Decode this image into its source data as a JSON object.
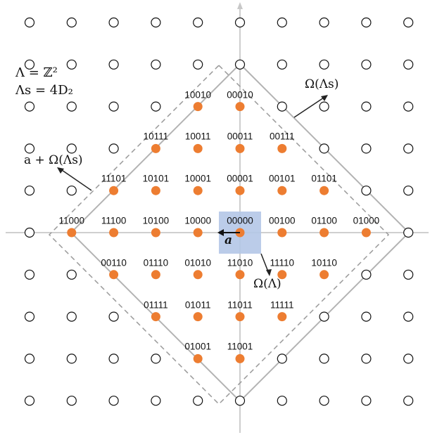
{
  "lattice_annotation": {
    "line1": "Λ = ℤ²",
    "line2": "Λs = 4D₂"
  },
  "region_labels": {
    "omega_lambda_s": "Ω(Λs)",
    "a_plus_omega": "a + Ω(Λs)",
    "omega_lambda": "Ω(Λ)",
    "vector_a": "a"
  },
  "codewords": [
    {
      "code": "10010",
      "i": -1,
      "j": 3
    },
    {
      "code": "00010",
      "i": 0,
      "j": 3
    },
    {
      "code": "10111",
      "i": -2,
      "j": 2
    },
    {
      "code": "10011",
      "i": -1,
      "j": 2
    },
    {
      "code": "00011",
      "i": 0,
      "j": 2
    },
    {
      "code": "00111",
      "i": 1,
      "j": 2
    },
    {
      "code": "11101",
      "i": -3,
      "j": 1
    },
    {
      "code": "10101",
      "i": -2,
      "j": 1
    },
    {
      "code": "10001",
      "i": -1,
      "j": 1
    },
    {
      "code": "00001",
      "i": 0,
      "j": 1
    },
    {
      "code": "00101",
      "i": 1,
      "j": 1
    },
    {
      "code": "01101",
      "i": 2,
      "j": 1
    },
    {
      "code": "11000",
      "i": -4,
      "j": 0
    },
    {
      "code": "11100",
      "i": -3,
      "j": 0
    },
    {
      "code": "10100",
      "i": -2,
      "j": 0
    },
    {
      "code": "10000",
      "i": -1,
      "j": 0
    },
    {
      "code": "00000",
      "i": 0,
      "j": 0
    },
    {
      "code": "00100",
      "i": 1,
      "j": 0
    },
    {
      "code": "01100",
      "i": 2,
      "j": 0
    },
    {
      "code": "01000",
      "i": 3,
      "j": 0
    },
    {
      "code": "00110",
      "i": -3,
      "j": -1
    },
    {
      "code": "01110",
      "i": -2,
      "j": -1
    },
    {
      "code": "01010",
      "i": -1,
      "j": -1
    },
    {
      "code": "11010",
      "i": 0,
      "j": -1
    },
    {
      "code": "11110",
      "i": 1,
      "j": -1
    },
    {
      "code": "10110",
      "i": 2,
      "j": -1
    },
    {
      "code": "01111",
      "i": -2,
      "j": -2
    },
    {
      "code": "01011",
      "i": -1,
      "j": -2
    },
    {
      "code": "11011",
      "i": 0,
      "j": -2
    },
    {
      "code": "11111",
      "i": 1,
      "j": -2
    },
    {
      "code": "01001",
      "i": -1,
      "j": -3
    },
    {
      "code": "11001",
      "i": 0,
      "j": -3
    }
  ],
  "colors": {
    "codeword_point": "#ED7D31",
    "voronoi_cell": "#B4C7E7",
    "axis": "#C8C8C8",
    "region_boundary": "#B3B3B3",
    "text": "#111111"
  }
}
